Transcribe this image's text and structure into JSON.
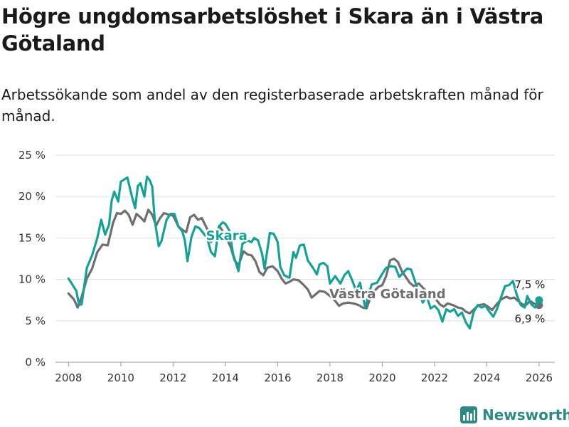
{
  "title": "Högre ungdomsarbetslöshet i Skara än i Västra Götaland",
  "subtitle": "Arbetssökande som andel av den registerbaserade arbetskraften månad för månad.",
  "brand": {
    "name": "Newsworthy",
    "icon": "newsworthy-logo-icon"
  },
  "colors": {
    "skara": "#14a196",
    "vg": "#6e6e6e",
    "grid": "#dddddd",
    "text": "#1a1a1a"
  },
  "chart_data": {
    "type": "line",
    "title": "Högre ungdomsarbetslöshet i Skara än i Västra Götaland",
    "ylabel": "",
    "xlabel": "",
    "ylim": [
      0,
      25
    ],
    "xlim": [
      2007.5,
      2026.6
    ],
    "yticks": [
      0,
      5,
      10,
      15,
      20,
      25
    ],
    "ytick_labels": [
      "0 %",
      "5 %",
      "10 %",
      "15 %",
      "20 %",
      "25 %"
    ],
    "xticks": [
      2008,
      2010,
      2012,
      2014,
      2016,
      2018,
      2020,
      2022,
      2024,
      2026
    ],
    "xtick_labels": [
      "2008",
      "2010",
      "2012",
      "2014",
      "2016",
      "2018",
      "2020",
      "2022",
      "2024",
      "2026"
    ],
    "grid": true,
    "series": [
      {
        "name": "Skara",
        "label_text": "Skara",
        "end_label": "7,5 %",
        "points": [
          [
            2008.0,
            10.1
          ],
          [
            2008.3,
            8.6
          ],
          [
            2008.4,
            6.9
          ],
          [
            2008.5,
            7.0
          ],
          [
            2008.7,
            11.4
          ],
          [
            2008.9,
            12.9
          ],
          [
            2009.1,
            15.0
          ],
          [
            2009.25,
            17.2
          ],
          [
            2009.4,
            15.4
          ],
          [
            2009.55,
            16.6
          ],
          [
            2009.65,
            19.5
          ],
          [
            2009.75,
            20.6
          ],
          [
            2009.9,
            19.4
          ],
          [
            2010.0,
            21.8
          ],
          [
            2010.15,
            22.1
          ],
          [
            2010.25,
            22.3
          ],
          [
            2010.4,
            20.3
          ],
          [
            2010.55,
            18.6
          ],
          [
            2010.65,
            21.3
          ],
          [
            2010.75,
            21.6
          ],
          [
            2010.9,
            20.0
          ],
          [
            2011.0,
            22.4
          ],
          [
            2011.1,
            22.0
          ],
          [
            2011.2,
            21.2
          ],
          [
            2011.3,
            17.1
          ],
          [
            2011.45,
            14.0
          ],
          [
            2011.55,
            14.6
          ],
          [
            2011.75,
            17.2
          ],
          [
            2011.9,
            17.9
          ],
          [
            2012.05,
            17.9
          ],
          [
            2012.2,
            16.4
          ],
          [
            2012.35,
            15.8
          ],
          [
            2012.45,
            14.7
          ],
          [
            2012.55,
            12.2
          ],
          [
            2012.7,
            15.1
          ],
          [
            2012.85,
            16.4
          ],
          [
            2013.0,
            16.2
          ],
          [
            2013.15,
            15.6
          ],
          [
            2013.3,
            15.0
          ],
          [
            2013.45,
            13.3
          ],
          [
            2013.6,
            12.8
          ],
          [
            2013.75,
            16.4
          ],
          [
            2013.9,
            16.9
          ],
          [
            2014.0,
            16.7
          ],
          [
            2014.15,
            15.9
          ],
          [
            2014.3,
            13.0
          ],
          [
            2014.5,
            11.0
          ],
          [
            2014.65,
            14.3
          ],
          [
            2014.85,
            14.7
          ],
          [
            2015.0,
            14.5
          ],
          [
            2015.1,
            15.0
          ],
          [
            2015.25,
            14.7
          ],
          [
            2015.4,
            13.1
          ],
          [
            2015.5,
            11.3
          ],
          [
            2015.7,
            15.6
          ],
          [
            2015.85,
            15.5
          ],
          [
            2016.0,
            14.5
          ],
          [
            2016.1,
            11.5
          ],
          [
            2016.25,
            10.5
          ],
          [
            2016.45,
            10.2
          ],
          [
            2016.6,
            13.3
          ],
          [
            2016.7,
            12.6
          ],
          [
            2016.85,
            14.1
          ],
          [
            2017.0,
            14.2
          ],
          [
            2017.15,
            12.3
          ],
          [
            2017.35,
            11.4
          ],
          [
            2017.5,
            10.6
          ],
          [
            2017.6,
            11.8
          ],
          [
            2017.75,
            12.0
          ],
          [
            2017.9,
            11.6
          ],
          [
            2018.0,
            9.5
          ],
          [
            2018.2,
            10.4
          ],
          [
            2018.4,
            9.5
          ],
          [
            2018.55,
            10.5
          ],
          [
            2018.7,
            11.0
          ],
          [
            2018.85,
            9.9
          ],
          [
            2019.0,
            8.6
          ],
          [
            2019.15,
            9.6
          ],
          [
            2019.35,
            6.6
          ],
          [
            2019.5,
            8.4
          ],
          [
            2019.6,
            9.4
          ],
          [
            2019.8,
            9.6
          ],
          [
            2019.95,
            10.4
          ],
          [
            2020.15,
            11.4
          ],
          [
            2020.35,
            11.6
          ],
          [
            2020.5,
            11.5
          ],
          [
            2020.65,
            10.3
          ],
          [
            2020.8,
            10.8
          ],
          [
            2020.95,
            11.3
          ],
          [
            2021.1,
            11.2
          ],
          [
            2021.25,
            9.8
          ],
          [
            2021.4,
            8.4
          ],
          [
            2021.55,
            7.2
          ],
          [
            2021.7,
            8.0
          ],
          [
            2021.85,
            6.5
          ],
          [
            2022.0,
            6.8
          ],
          [
            2022.15,
            6.3
          ],
          [
            2022.3,
            4.9
          ],
          [
            2022.45,
            6.4
          ],
          [
            2022.6,
            6.1
          ],
          [
            2022.75,
            6.4
          ],
          [
            2022.9,
            5.6
          ],
          [
            2023.05,
            6.0
          ],
          [
            2023.2,
            4.8
          ],
          [
            2023.35,
            4.1
          ],
          [
            2023.5,
            6.1
          ],
          [
            2023.65,
            6.9
          ],
          [
            2023.8,
            6.6
          ],
          [
            2023.95,
            6.8
          ],
          [
            2024.1,
            6.1
          ],
          [
            2024.25,
            5.5
          ],
          [
            2024.4,
            6.5
          ],
          [
            2024.55,
            7.9
          ],
          [
            2024.7,
            9.2
          ],
          [
            2024.85,
            9.3
          ],
          [
            2025.0,
            9.8
          ],
          [
            2025.15,
            8.1
          ],
          [
            2025.3,
            6.9
          ],
          [
            2025.45,
            6.6
          ],
          [
            2025.55,
            8.0
          ],
          [
            2025.7,
            7.0
          ],
          [
            2025.85,
            6.6
          ],
          [
            2026.0,
            7.5
          ]
        ]
      },
      {
        "name": "Västra Götaland",
        "label_text": "Västra Götaland",
        "end_label": "6,9 %",
        "points": [
          [
            2008.0,
            8.3
          ],
          [
            2008.2,
            7.6
          ],
          [
            2008.35,
            6.6
          ],
          [
            2008.5,
            7.9
          ],
          [
            2008.7,
            10.1
          ],
          [
            2008.9,
            11.3
          ],
          [
            2009.1,
            13.3
          ],
          [
            2009.3,
            14.2
          ],
          [
            2009.5,
            14.1
          ],
          [
            2009.7,
            16.8
          ],
          [
            2009.85,
            18.0
          ],
          [
            2010.0,
            17.9
          ],
          [
            2010.15,
            18.3
          ],
          [
            2010.3,
            17.8
          ],
          [
            2010.45,
            16.6
          ],
          [
            2010.6,
            17.9
          ],
          [
            2010.75,
            17.5
          ],
          [
            2010.9,
            17.0
          ],
          [
            2011.05,
            18.4
          ],
          [
            2011.2,
            17.8
          ],
          [
            2011.35,
            16.5
          ],
          [
            2011.5,
            17.4
          ],
          [
            2011.65,
            18.0
          ],
          [
            2011.85,
            17.8
          ],
          [
            2012.0,
            17.7
          ],
          [
            2012.2,
            16.4
          ],
          [
            2012.35,
            16.0
          ],
          [
            2012.5,
            15.7
          ],
          [
            2012.65,
            17.5
          ],
          [
            2012.8,
            17.8
          ],
          [
            2012.95,
            17.2
          ],
          [
            2013.1,
            17.4
          ],
          [
            2013.3,
            16.1
          ],
          [
            2013.45,
            14.5
          ],
          [
            2013.65,
            15.6
          ],
          [
            2013.8,
            16.3
          ],
          [
            2014.0,
            15.3
          ],
          [
            2014.2,
            13.9
          ],
          [
            2014.35,
            12.3
          ],
          [
            2014.5,
            11.7
          ],
          [
            2014.7,
            13.4
          ],
          [
            2014.85,
            13.0
          ],
          [
            2015.0,
            12.9
          ],
          [
            2015.15,
            12.2
          ],
          [
            2015.3,
            10.9
          ],
          [
            2015.45,
            10.5
          ],
          [
            2015.6,
            11.4
          ],
          [
            2015.8,
            11.6
          ],
          [
            2016.0,
            11.0
          ],
          [
            2016.15,
            10.1
          ],
          [
            2016.3,
            9.5
          ],
          [
            2016.45,
            9.7
          ],
          [
            2016.6,
            10.0
          ],
          [
            2016.8,
            9.9
          ],
          [
            2017.0,
            9.3
          ],
          [
            2017.15,
            8.8
          ],
          [
            2017.3,
            7.8
          ],
          [
            2017.45,
            8.2
          ],
          [
            2017.6,
            8.6
          ],
          [
            2017.8,
            8.5
          ],
          [
            2018.0,
            8.0
          ],
          [
            2018.2,
            7.4
          ],
          [
            2018.35,
            6.8
          ],
          [
            2018.5,
            7.1
          ],
          [
            2018.7,
            7.2
          ],
          [
            2018.9,
            7.1
          ],
          [
            2019.1,
            6.9
          ],
          [
            2019.25,
            6.6
          ],
          [
            2019.4,
            6.5
          ],
          [
            2019.55,
            7.8
          ],
          [
            2019.7,
            8.6
          ],
          [
            2019.85,
            9.1
          ],
          [
            2020.0,
            9.3
          ],
          [
            2020.15,
            10.4
          ],
          [
            2020.3,
            12.3
          ],
          [
            2020.45,
            12.5
          ],
          [
            2020.6,
            12.1
          ],
          [
            2020.75,
            11.0
          ],
          [
            2020.9,
            10.3
          ],
          [
            2021.05,
            9.6
          ],
          [
            2021.2,
            9.2
          ],
          [
            2021.4,
            9.5
          ],
          [
            2021.55,
            9.0
          ],
          [
            2021.75,
            8.3
          ],
          [
            2021.9,
            7.8
          ],
          [
            2022.05,
            7.6
          ],
          [
            2022.2,
            7.0
          ],
          [
            2022.35,
            6.7
          ],
          [
            2022.5,
            7.1
          ],
          [
            2022.7,
            6.9
          ],
          [
            2022.9,
            6.6
          ],
          [
            2023.05,
            6.5
          ],
          [
            2023.2,
            6.1
          ],
          [
            2023.35,
            5.9
          ],
          [
            2023.55,
            6.5
          ],
          [
            2023.7,
            6.9
          ],
          [
            2023.9,
            7.0
          ],
          [
            2024.05,
            6.7
          ],
          [
            2024.2,
            6.3
          ],
          [
            2024.35,
            6.9
          ],
          [
            2024.55,
            7.6
          ],
          [
            2024.75,
            7.9
          ],
          [
            2024.9,
            7.7
          ],
          [
            2025.05,
            7.8
          ],
          [
            2025.2,
            7.4
          ],
          [
            2025.35,
            7.0
          ],
          [
            2025.5,
            6.9
          ],
          [
            2025.65,
            7.4
          ],
          [
            2025.8,
            7.1
          ],
          [
            2025.95,
            6.9
          ],
          [
            2026.0,
            6.9
          ]
        ]
      }
    ]
  }
}
